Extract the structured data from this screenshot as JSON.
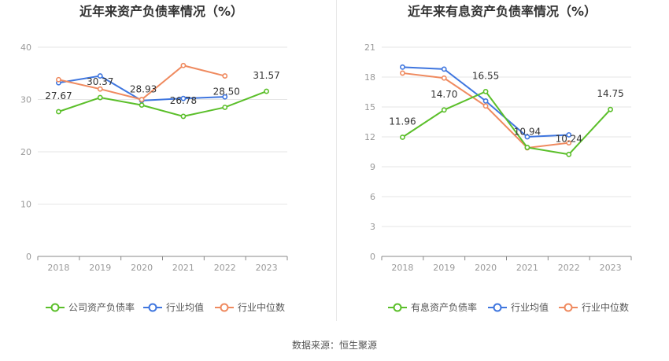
{
  "colors": {
    "company": "#5bbf2a",
    "avg": "#3f76df",
    "median": "#ef8a5f",
    "grid": "#e6e6e6",
    "axis": "#888888",
    "tick": "#999999",
    "title": "#333333"
  },
  "source_text": "数据来源：恒生聚源",
  "chart_data": [
    {
      "type": "line",
      "title": "近年来资产负债率情况（%）",
      "categories": [
        "2018",
        "2019",
        "2020",
        "2021",
        "2022",
        "2023"
      ],
      "ylim": [
        0,
        40
      ],
      "yticks": [
        0,
        10,
        20,
        30,
        40
      ],
      "grid": true,
      "legend_position": "bottom",
      "series": [
        {
          "name": "公司资产负债率",
          "color_key": "company",
          "labeled": true,
          "values": [
            27.67,
            30.37,
            28.93,
            26.78,
            28.5,
            31.57
          ]
        },
        {
          "name": "行业均值",
          "color_key": "avg",
          "labeled": false,
          "values": [
            33.2,
            34.5,
            29.8,
            30.2,
            30.5,
            null
          ]
        },
        {
          "name": "行业中位数",
          "color_key": "median",
          "labeled": false,
          "values": [
            33.8,
            32.0,
            30.0,
            36.5,
            34.5,
            null
          ]
        }
      ]
    },
    {
      "type": "line",
      "title": "近年来有息资产负债率情况（%）",
      "categories": [
        "2018",
        "2019",
        "2020",
        "2021",
        "2022",
        "2023"
      ],
      "ylim": [
        0,
        21
      ],
      "yticks": [
        0,
        3,
        6,
        9,
        12,
        15,
        18,
        21
      ],
      "grid": true,
      "legend_position": "bottom",
      "series": [
        {
          "name": "有息资产负债率",
          "color_key": "company",
          "labeled": true,
          "values": [
            11.96,
            14.7,
            16.55,
            10.94,
            10.24,
            14.75
          ]
        },
        {
          "name": "行业均值",
          "color_key": "avg",
          "labeled": false,
          "values": [
            19.0,
            18.8,
            15.6,
            12.0,
            12.2,
            null
          ]
        },
        {
          "name": "行业中位数",
          "color_key": "median",
          "labeled": false,
          "values": [
            18.4,
            17.9,
            15.1,
            10.9,
            11.4,
            null
          ]
        }
      ]
    }
  ]
}
